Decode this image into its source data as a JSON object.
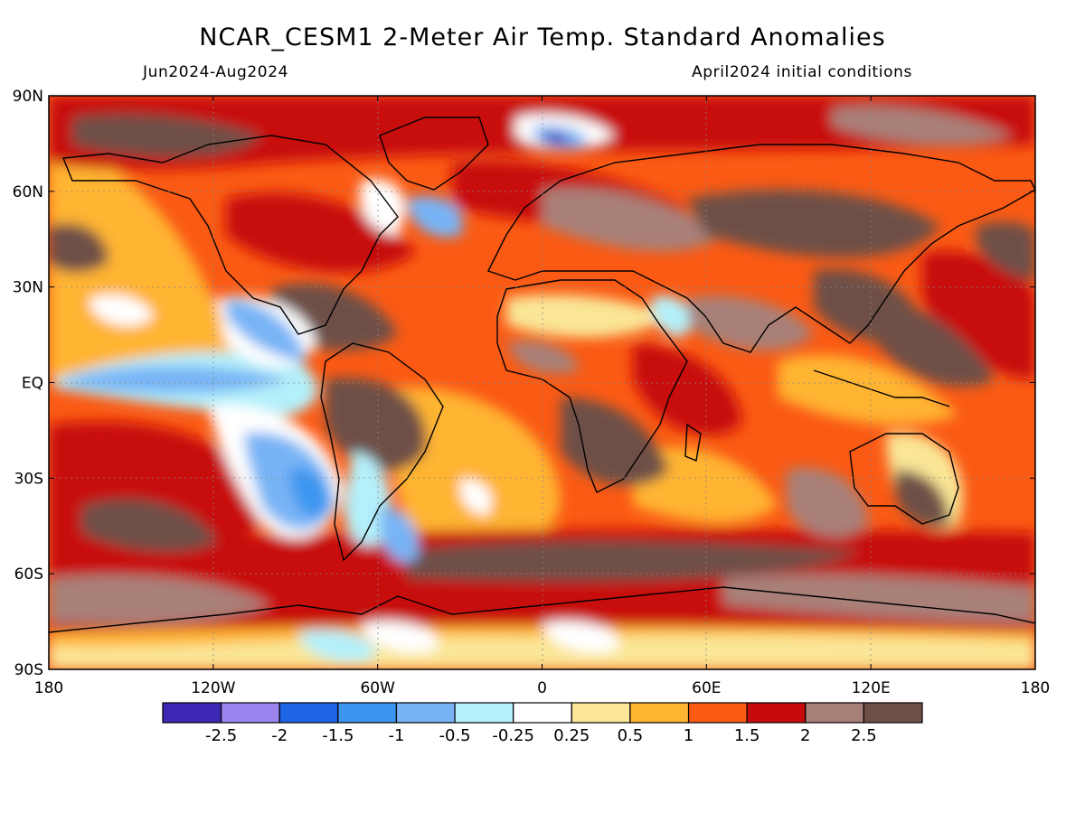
{
  "title": "NCAR_CESM1 2-Meter Air Temp. Standard Anomalies",
  "subtitle_left": "Jun2024-Aug2024",
  "subtitle_right": "April2024 initial conditions",
  "map": {
    "lat_labels": [
      "90N",
      "60N",
      "30N",
      "EQ",
      "30S",
      "60S",
      "90S"
    ],
    "lon_labels": [
      "180",
      "120W",
      "60W",
      "0",
      "60E",
      "120E",
      "180"
    ],
    "lat_range": [
      -90,
      90
    ],
    "lon_range": [
      -180,
      180
    ],
    "grid": "dashed"
  },
  "colorbar": {
    "colors": [
      "#3c28b4",
      "#9b84ee",
      "#1e64e6",
      "#3c96f0",
      "#78b4f5",
      "#b4f0fa",
      "#ffffff",
      "#fae696",
      "#ffb432",
      "#fa5a14",
      "#c80a0a",
      "#a88078",
      "#6e5046"
    ],
    "labels": [
      "-2.5",
      "-2",
      "-1.5",
      "-1",
      "-0.5",
      "-0.25",
      "0.25",
      "0.5",
      "1",
      "1.5",
      "2",
      "2.5"
    ]
  },
  "chart_data": {
    "type": "heatmap",
    "title": "NCAR_CESM1 2-Meter Air Temp. Standard Anomalies",
    "subtitle": "Jun2024-Aug2024",
    "note": "April2024 initial conditions",
    "x_ticks": [
      "180",
      "120W",
      "60W",
      "0",
      "60E",
      "120E",
      "180"
    ],
    "y_ticks": [
      "90N",
      "60N",
      "30N",
      "EQ",
      "30S",
      "60S",
      "90S"
    ],
    "levels": [
      -2.5,
      -2,
      -1.5,
      -1,
      -0.5,
      -0.25,
      0.25,
      0.5,
      1,
      1.5,
      2,
      2.5
    ],
    "anomaly_regions": [
      {
        "region": "Eastern tropical Pacific",
        "anomaly": -1.0
      },
      {
        "region": "Southeast Pacific off South America",
        "anomaly": -0.75
      },
      {
        "region": "South Atlantic off Argentina",
        "anomaly": -1.0
      },
      {
        "region": "Arctic north of Scandinavia",
        "anomaly": -2.0
      },
      {
        "region": "Labrador Sea / south of Greenland",
        "anomaly": -1.0
      },
      {
        "region": "Northeast Africa / Red Sea",
        "anomaly": -0.5
      },
      {
        "region": "Antarctica coast",
        "anomaly": 0.0
      },
      {
        "region": "North Africa / Sahel",
        "anomaly": 1.5
      },
      {
        "region": "Southern Africa",
        "anomaly": 2.5
      },
      {
        "region": "Brazil / South America interior",
        "anomaly": 2.5
      },
      {
        "region": "North America",
        "anomaly": 2.5
      },
      {
        "region": "Siberia / Russia",
        "anomaly": 2.5
      },
      {
        "region": "Middle East / India",
        "anomaly": 2.5
      },
      {
        "region": "Australia",
        "anomaly": 2.0
      },
      {
        "region": "Southern Ocean",
        "anomaly": 2.5
      },
      {
        "region": "North Pacific",
        "anomaly": 2.5
      },
      {
        "region": "Central Pacific south of equator",
        "anomaly": 1.5
      }
    ]
  }
}
